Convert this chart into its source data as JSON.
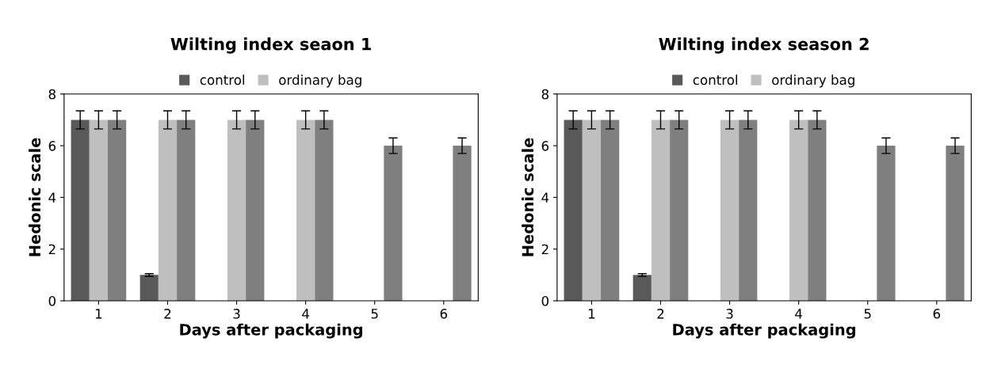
{
  "chart_data": [
    {
      "type": "bar",
      "title": "Wilting index seaon 1",
      "xlabel": "Days after packaging",
      "ylabel": "Hedonic scale",
      "categories": [
        "1",
        "2",
        "3",
        "4",
        "5",
        "6"
      ],
      "series": [
        {
          "name": "control",
          "color": "#595959",
          "values": [
            7,
            1,
            0,
            0,
            0,
            0
          ],
          "errors": [
            0.35,
            0.05,
            null,
            null,
            null,
            null
          ]
        },
        {
          "name": "ordinary bag",
          "color": "#bfbfbf",
          "values": [
            7,
            7,
            7,
            7,
            0,
            0
          ],
          "errors": [
            0.35,
            0.35,
            0.35,
            0.35,
            null,
            null
          ]
        },
        {
          "color": "#7f7f7f",
          "values": [
            7,
            7,
            7,
            7,
            6,
            6
          ],
          "errors": [
            0.35,
            0.35,
            0.35,
            0.35,
            0.3,
            0.3
          ]
        }
      ],
      "ylim": [
        0,
        8
      ],
      "yticks": [
        0,
        2,
        4,
        6,
        8
      ],
      "legend": "top"
    },
    {
      "type": "bar",
      "title": "Wilting index season 2",
      "xlabel": "Days after packaging",
      "ylabel": "Hedonic scale",
      "categories": [
        "1",
        "2",
        "3",
        "4",
        "5",
        "6"
      ],
      "series": [
        {
          "name": "control",
          "color": "#595959",
          "values": [
            7,
            1,
            0,
            0,
            0,
            0
          ],
          "errors": [
            0.35,
            0.05,
            null,
            null,
            null,
            null
          ]
        },
        {
          "name": "ordinary bag",
          "color": "#bfbfbf",
          "values": [
            7,
            7,
            7,
            7,
            0,
            0
          ],
          "errors": [
            0.35,
            0.35,
            0.35,
            0.35,
            null,
            null
          ]
        },
        {
          "color": "#7f7f7f",
          "values": [
            7,
            7,
            7,
            7,
            6,
            6
          ],
          "errors": [
            0.35,
            0.35,
            0.35,
            0.35,
            0.3,
            0.3
          ]
        }
      ],
      "ylim": [
        0,
        8
      ],
      "yticks": [
        0,
        2,
        4,
        6,
        8
      ],
      "legend": "top"
    }
  ]
}
